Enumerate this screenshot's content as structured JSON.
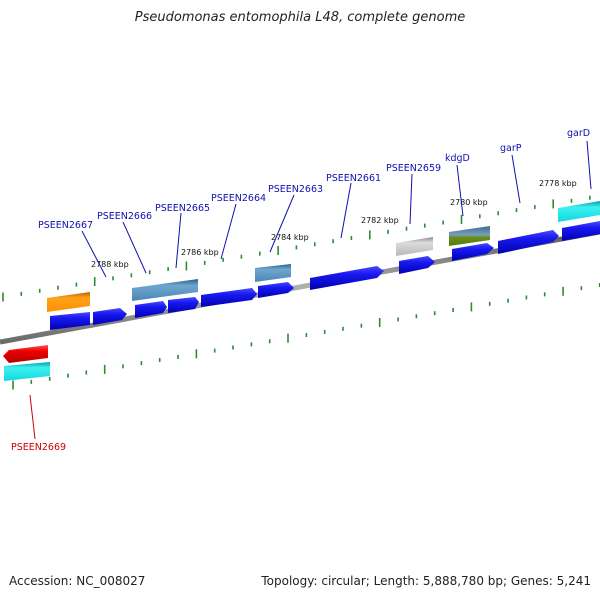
{
  "title": "Pseudomonas entomophila L48, complete genome",
  "accession": "Accession: NC_008027",
  "summary": "Topology: circular; Length: 5,888,780 bp; Genes: 5,241",
  "scale_labels": [
    "2778 kbp",
    "2780 kbp",
    "2782 kbp",
    "2784 kbp",
    "2786 kbp",
    "2788 kbp"
  ],
  "gene_labels": {
    "garD": "garD",
    "garP": "garP",
    "kdgD": "kdgD",
    "PSEEN2659": "PSEEN2659",
    "PSEEN2661": "PSEEN2661",
    "PSEEN2663": "PSEEN2663",
    "PSEEN2664": "PSEEN2664",
    "PSEEN2665": "PSEEN2665",
    "PSEEN2666": "PSEEN2666",
    "PSEEN2667": "PSEEN2667",
    "PSEEN2669": "PSEEN2669"
  },
  "colors": {
    "forward_gene": "#1414e6",
    "reverse_gene": "#e00000",
    "label_forward": "#1010b0",
    "label_reverse": "#cc0000",
    "backbone": "#808080",
    "tick": "#2e8b2e"
  }
}
